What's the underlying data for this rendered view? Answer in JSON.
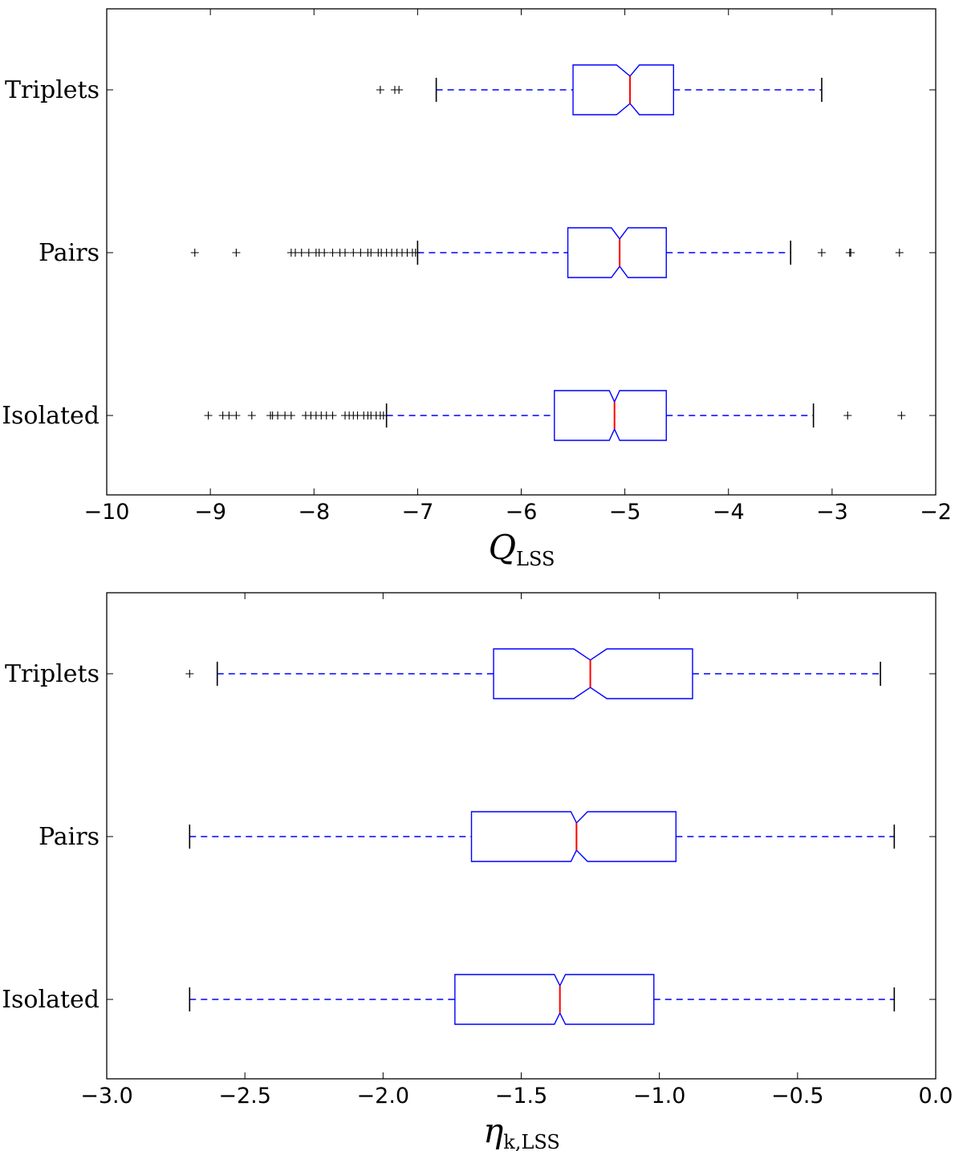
{
  "chart_data": [
    {
      "type": "boxplot",
      "orientation": "horizontal",
      "notched": true,
      "xlabel": {
        "main": "Q",
        "sub": "LSS"
      },
      "xlim": [
        -10,
        -2
      ],
      "xticks": [
        -10,
        -9,
        -8,
        -7,
        -6,
        -5,
        -4,
        -3,
        -2
      ],
      "xtick_labels": [
        "−10",
        "−9",
        "−8",
        "−7",
        "−6",
        "−5",
        "−4",
        "−3",
        "−2"
      ],
      "categories": [
        "Triplets",
        "Pairs",
        "Isolated"
      ],
      "boxes": [
        {
          "name": "Triplets",
          "whisker_low": -6.82,
          "q1": -5.5,
          "notch_low": -5.08,
          "median": -4.95,
          "notch_high": -4.86,
          "q3": -4.53,
          "whisker_high": -3.1,
          "outliers": [
            -7.36,
            -7.22,
            -7.18
          ]
        },
        {
          "name": "Pairs",
          "whisker_low": -7.0,
          "q1": -5.55,
          "notch_low": -5.13,
          "median": -5.05,
          "notch_high": -4.97,
          "q3": -4.6,
          "whisker_high": -3.4,
          "outliers": [
            -9.15,
            -8.75,
            -8.22,
            -8.18,
            -8.12,
            -8.05,
            -7.98,
            -7.95,
            -7.9,
            -7.82,
            -7.75,
            -7.7,
            -7.62,
            -7.55,
            -7.48,
            -7.45,
            -7.38,
            -7.35,
            -7.3,
            -7.25,
            -7.2,
            -7.15,
            -7.1,
            -7.05,
            -7.02,
            -3.1,
            -2.83,
            -2.82,
            -2.35
          ]
        },
        {
          "name": "Isolated",
          "whisker_low": -7.3,
          "q1": -5.68,
          "notch_low": -5.15,
          "median": -5.1,
          "notch_high": -5.05,
          "q3": -4.6,
          "whisker_high": -3.18,
          "outliers": [
            -9.02,
            -8.88,
            -8.82,
            -8.75,
            -8.6,
            -8.42,
            -8.4,
            -8.35,
            -8.28,
            -8.22,
            -8.08,
            -8.03,
            -7.98,
            -7.93,
            -7.88,
            -7.82,
            -7.7,
            -7.66,
            -7.62,
            -7.58,
            -7.52,
            -7.48,
            -7.45,
            -7.4,
            -7.36,
            -7.33,
            -2.85,
            -2.33
          ]
        }
      ]
    },
    {
      "type": "boxplot",
      "orientation": "horizontal",
      "notched": true,
      "xlabel": {
        "main": "η",
        "sub": "k,LSS"
      },
      "xlim": [
        -3.0,
        0.0
      ],
      "xticks": [
        -3.0,
        -2.5,
        -2.0,
        -1.5,
        -1.0,
        -0.5,
        0.0
      ],
      "xtick_labels": [
        "−3.0",
        "−2.5",
        "−2.0",
        "−1.5",
        "−1.0",
        "−0.5",
        "0.0"
      ],
      "categories": [
        "Triplets",
        "Pairs",
        "Isolated"
      ],
      "boxes": [
        {
          "name": "Triplets",
          "whisker_low": -2.6,
          "q1": -1.6,
          "notch_low": -1.31,
          "median": -1.25,
          "notch_high": -1.19,
          "q3": -0.88,
          "whisker_high": -0.2,
          "outliers": [
            -2.7
          ]
        },
        {
          "name": "Pairs",
          "whisker_low": -2.7,
          "q1": -1.68,
          "notch_low": -1.32,
          "median": -1.3,
          "notch_high": -1.26,
          "q3": -0.94,
          "whisker_high": -0.15,
          "outliers": []
        },
        {
          "name": "Isolated",
          "whisker_low": -2.7,
          "q1": -1.74,
          "notch_low": -1.38,
          "median": -1.36,
          "notch_high": -1.34,
          "q3": -1.02,
          "whisker_high": -0.15,
          "outliers": []
        }
      ]
    }
  ],
  "colors": {
    "box": "#0000ff",
    "median": "#ff0000",
    "whisker": "#0000ff",
    "cap": "#000000",
    "flier": "#000000",
    "axes": "#000000"
  }
}
